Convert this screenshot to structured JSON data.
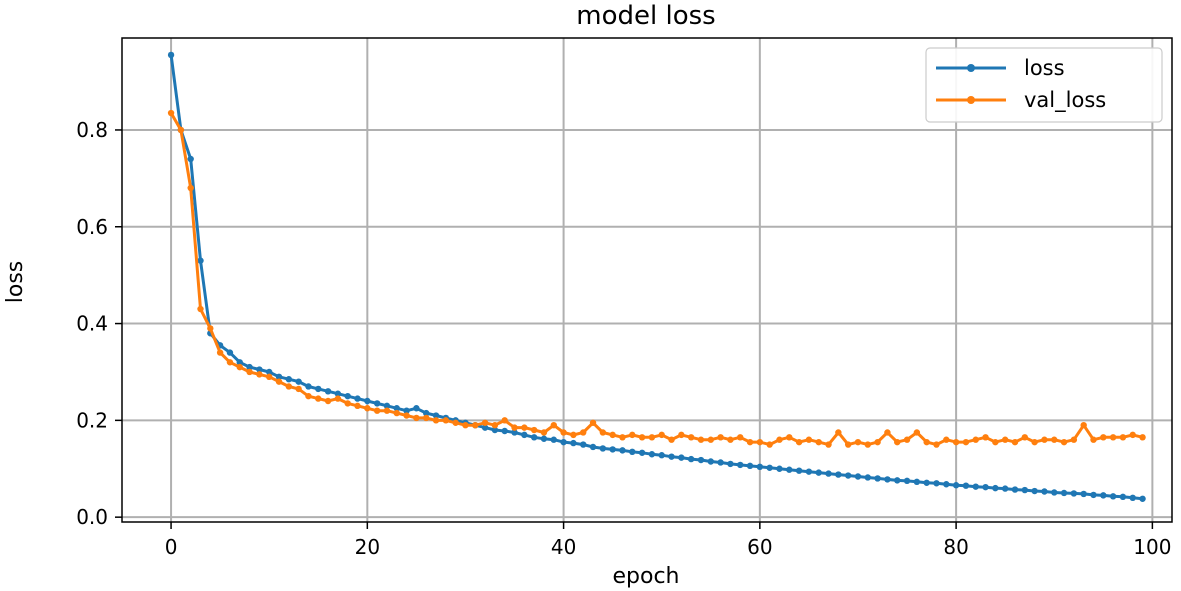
{
  "chart_data": {
    "type": "line",
    "title": "model loss",
    "xlabel": "epoch",
    "ylabel": "loss",
    "xlim": [
      -5,
      102
    ],
    "ylim": [
      -0.01,
      0.99
    ],
    "xticks": [
      0,
      20,
      40,
      60,
      80,
      100
    ],
    "yticks": [
      0.0,
      0.2,
      0.4,
      0.6,
      0.8
    ],
    "xtick_labels": [
      "0",
      "20",
      "40",
      "60",
      "80",
      "100"
    ],
    "ytick_labels": [
      "0.0",
      "0.2",
      "0.4",
      "0.6",
      "0.8"
    ],
    "grid": true,
    "legend_position": "top-right",
    "series": [
      {
        "name": "loss",
        "color": "#1f77b4",
        "x": [
          0,
          1,
          2,
          3,
          4,
          5,
          6,
          7,
          8,
          9,
          10,
          11,
          12,
          13,
          14,
          15,
          16,
          17,
          18,
          19,
          20,
          21,
          22,
          23,
          24,
          25,
          26,
          27,
          28,
          29,
          30,
          31,
          32,
          33,
          34,
          35,
          36,
          37,
          38,
          39,
          40,
          41,
          42,
          43,
          44,
          45,
          46,
          47,
          48,
          49,
          50,
          51,
          52,
          53,
          54,
          55,
          56,
          57,
          58,
          59,
          60,
          61,
          62,
          63,
          64,
          65,
          66,
          67,
          68,
          69,
          70,
          71,
          72,
          73,
          74,
          75,
          76,
          77,
          78,
          79,
          80,
          81,
          82,
          83,
          84,
          85,
          86,
          87,
          88,
          89,
          90,
          91,
          92,
          93,
          94,
          95,
          96,
          97,
          98,
          99
        ],
        "y": [
          0.955,
          0.8,
          0.74,
          0.53,
          0.38,
          0.355,
          0.34,
          0.32,
          0.31,
          0.305,
          0.3,
          0.29,
          0.285,
          0.28,
          0.27,
          0.265,
          0.26,
          0.255,
          0.25,
          0.245,
          0.24,
          0.235,
          0.23,
          0.225,
          0.22,
          0.225,
          0.215,
          0.21,
          0.205,
          0.2,
          0.195,
          0.19,
          0.185,
          0.18,
          0.178,
          0.175,
          0.17,
          0.165,
          0.162,
          0.16,
          0.155,
          0.153,
          0.15,
          0.145,
          0.142,
          0.14,
          0.138,
          0.135,
          0.133,
          0.13,
          0.128,
          0.125,
          0.123,
          0.12,
          0.118,
          0.115,
          0.113,
          0.11,
          0.108,
          0.106,
          0.104,
          0.102,
          0.1,
          0.098,
          0.096,
          0.094,
          0.092,
          0.09,
          0.088,
          0.086,
          0.084,
          0.082,
          0.08,
          0.078,
          0.076,
          0.075,
          0.073,
          0.071,
          0.07,
          0.068,
          0.066,
          0.065,
          0.063,
          0.062,
          0.06,
          0.059,
          0.057,
          0.056,
          0.054,
          0.053,
          0.051,
          0.05,
          0.049,
          0.048,
          0.046,
          0.045,
          0.043,
          0.042,
          0.04,
          0.038
        ]
      },
      {
        "name": "val_loss",
        "color": "#ff7f0e",
        "x": [
          0,
          1,
          2,
          3,
          4,
          5,
          6,
          7,
          8,
          9,
          10,
          11,
          12,
          13,
          14,
          15,
          16,
          17,
          18,
          19,
          20,
          21,
          22,
          23,
          24,
          25,
          26,
          27,
          28,
          29,
          30,
          31,
          32,
          33,
          34,
          35,
          36,
          37,
          38,
          39,
          40,
          41,
          42,
          43,
          44,
          45,
          46,
          47,
          48,
          49,
          50,
          51,
          52,
          53,
          54,
          55,
          56,
          57,
          58,
          59,
          60,
          61,
          62,
          63,
          64,
          65,
          66,
          67,
          68,
          69,
          70,
          71,
          72,
          73,
          74,
          75,
          76,
          77,
          78,
          79,
          80,
          81,
          82,
          83,
          84,
          85,
          86,
          87,
          88,
          89,
          90,
          91,
          92,
          93,
          94,
          95,
          96,
          97,
          98,
          99
        ],
        "y": [
          0.835,
          0.8,
          0.68,
          0.43,
          0.39,
          0.34,
          0.32,
          0.31,
          0.3,
          0.295,
          0.29,
          0.28,
          0.27,
          0.265,
          0.25,
          0.245,
          0.24,
          0.245,
          0.235,
          0.23,
          0.225,
          0.22,
          0.22,
          0.215,
          0.21,
          0.205,
          0.205,
          0.2,
          0.2,
          0.195,
          0.19,
          0.19,
          0.195,
          0.19,
          0.2,
          0.185,
          0.185,
          0.18,
          0.175,
          0.19,
          0.175,
          0.17,
          0.175,
          0.195,
          0.175,
          0.17,
          0.165,
          0.17,
          0.165,
          0.165,
          0.17,
          0.16,
          0.17,
          0.165,
          0.16,
          0.16,
          0.165,
          0.16,
          0.165,
          0.155,
          0.155,
          0.15,
          0.16,
          0.165,
          0.155,
          0.16,
          0.155,
          0.15,
          0.175,
          0.15,
          0.155,
          0.15,
          0.155,
          0.175,
          0.155,
          0.16,
          0.175,
          0.155,
          0.15,
          0.16,
          0.155,
          0.155,
          0.16,
          0.165,
          0.155,
          0.16,
          0.155,
          0.165,
          0.155,
          0.16,
          0.16,
          0.155,
          0.16,
          0.19,
          0.16,
          0.165,
          0.165,
          0.165,
          0.17,
          0.165
        ]
      }
    ]
  }
}
